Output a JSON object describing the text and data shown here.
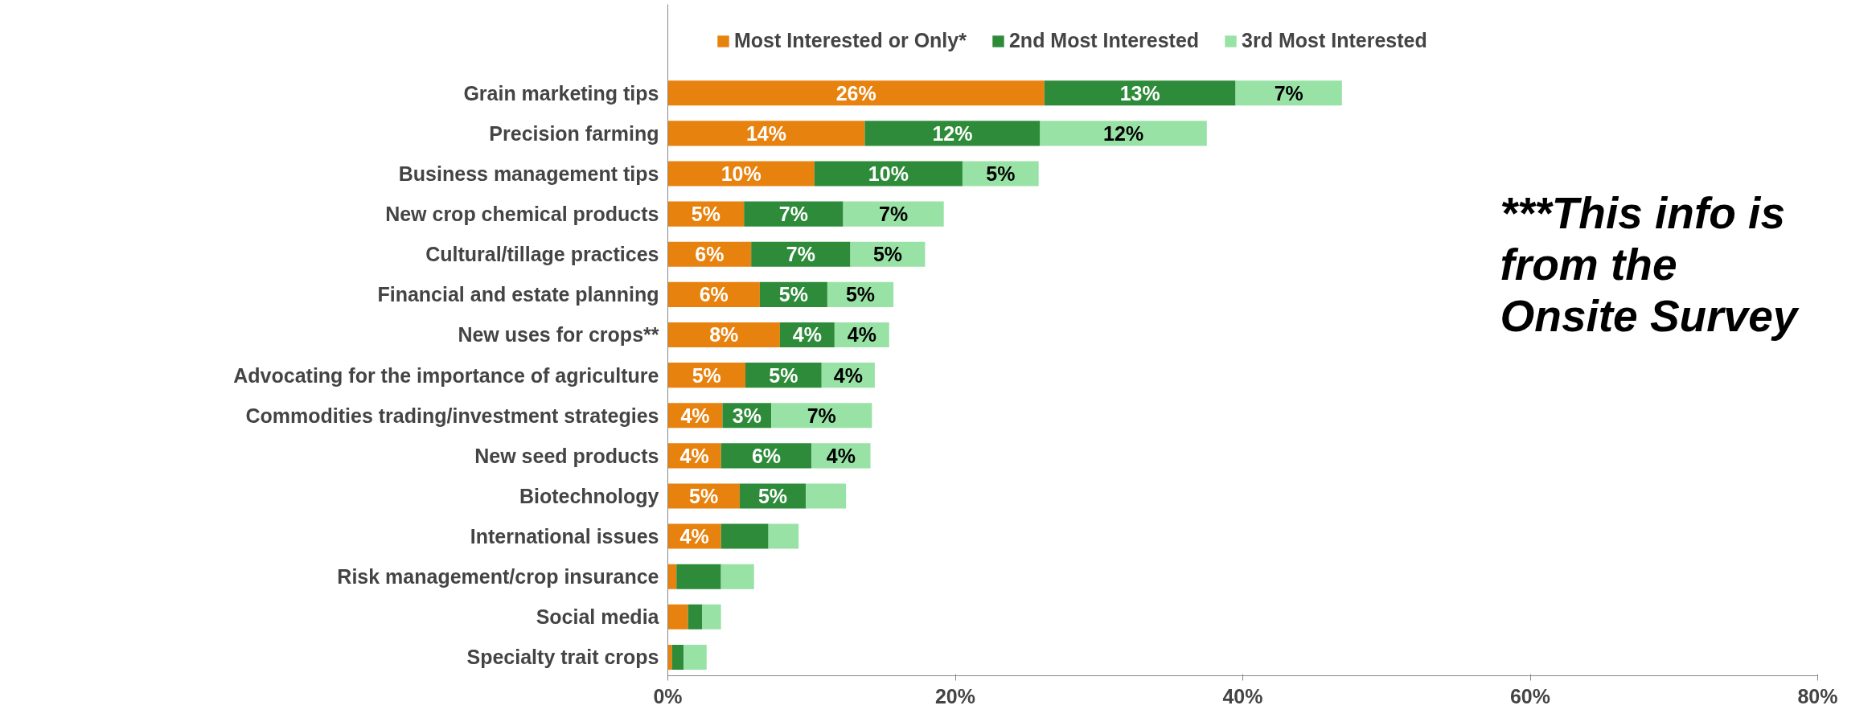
{
  "chart_data": {
    "type": "bar",
    "orientation": "horizontal",
    "stacked": true,
    "categories": [
      "Grain marketing tips",
      "Precision farming",
      "Business management tips",
      "New crop chemical products",
      "Cultural/tillage practices",
      "Financial and estate planning",
      "New uses for crops**",
      "Advocating for the importance of agriculture",
      "Commodities trading/investment strategies",
      "New seed products",
      "Biotechnology",
      "International issues",
      "Risk management/crop insurance",
      "Social media",
      "Specialty trait crops"
    ],
    "series": [
      {
        "name": "Most Interested or Only*",
        "color": "#e8820f",
        "values": [
          26.2,
          13.7,
          10.2,
          5.3,
          5.8,
          6.4,
          7.8,
          5.4,
          3.8,
          3.7,
          5.0,
          3.7,
          0.6,
          1.4,
          0.3
        ],
        "value_labels": [
          "26%",
          "14%",
          "10%",
          "5%",
          "6%",
          "6%",
          "8%",
          "5%",
          "4%",
          "4%",
          "5%",
          "4%",
          null,
          null,
          null
        ]
      },
      {
        "name": "2nd Most Interested",
        "color": "#2e8b3a",
        "values": [
          13.3,
          12.2,
          10.3,
          6.9,
          6.9,
          4.7,
          3.8,
          5.3,
          3.4,
          6.3,
          4.6,
          3.3,
          3.1,
          1.0,
          0.8
        ],
        "value_labels": [
          "13%",
          "12%",
          "10%",
          "7%",
          "7%",
          "5%",
          "4%",
          "5%",
          "3%",
          "6%",
          "5%",
          null,
          null,
          null,
          null
        ]
      },
      {
        "name": "3rd Most Interested",
        "color": "#99e2a6",
        "values": [
          7.4,
          11.6,
          5.3,
          7.0,
          5.2,
          4.6,
          3.8,
          3.7,
          7.0,
          4.1,
          2.8,
          2.1,
          2.3,
          1.3,
          1.6
        ],
        "value_labels": [
          "7%",
          "12%",
          "5%",
          "7%",
          "5%",
          "5%",
          "4%",
          "4%",
          "7%",
          "4%",
          null,
          null,
          null,
          null,
          null
        ]
      }
    ],
    "xlim": [
      0,
      80
    ],
    "xticks": [
      {
        "value": 0,
        "label": "0%"
      },
      {
        "value": 20,
        "label": "20%"
      },
      {
        "value": 40,
        "label": "40%"
      },
      {
        "value": 60,
        "label": "60%"
      },
      {
        "value": 80,
        "label": "80%"
      }
    ],
    "legend": "top",
    "grid": false,
    "annotations": [
      "***This info is from the Onsite Survey"
    ]
  }
}
